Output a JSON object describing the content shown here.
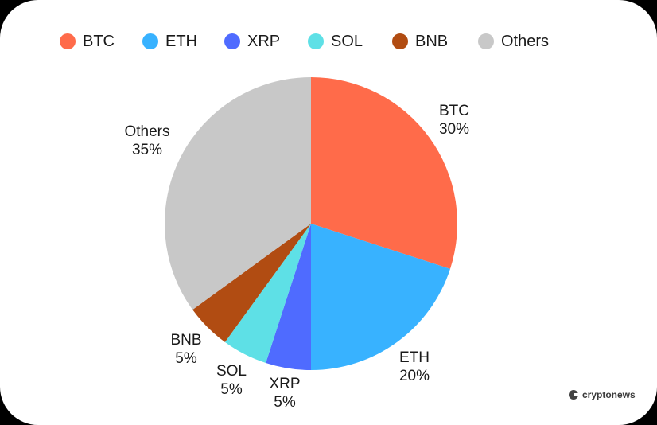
{
  "chart_data": {
    "type": "pie",
    "title": "",
    "categories": [
      "BTC",
      "ETH",
      "XRP",
      "SOL",
      "BNB",
      "Others"
    ],
    "values": [
      30,
      20,
      5,
      5,
      5,
      35
    ],
    "colors": [
      "#FF6B4A",
      "#38B2FF",
      "#4F6BFF",
      "#5EE0E6",
      "#B14C12",
      "#C8C8C8"
    ],
    "labels": [
      "30%",
      "20%",
      "5%",
      "5%",
      "5%",
      "35%"
    ],
    "legend_position": "top",
    "start_angle": "12 o'clock, clockwise"
  },
  "legend": [
    {
      "label": "BTC",
      "color": "#FF6B4A"
    },
    {
      "label": "ETH",
      "color": "#38B2FF"
    },
    {
      "label": "XRP",
      "color": "#4F6BFF"
    },
    {
      "label": "SOL",
      "color": "#5EE0E6"
    },
    {
      "label": "BNB",
      "color": "#B14C12"
    },
    {
      "label": "Others",
      "color": "#C8C8C8"
    }
  ],
  "slice_labels": [
    {
      "name": "BTC",
      "pct": "30%"
    },
    {
      "name": "ETH",
      "pct": "20%"
    },
    {
      "name": "XRP",
      "pct": "5%"
    },
    {
      "name": "SOL",
      "pct": "5%"
    },
    {
      "name": "BNB",
      "pct": "5%"
    },
    {
      "name": "Others",
      "pct": "35%"
    }
  ],
  "brand": {
    "name": "cryptonews"
  }
}
